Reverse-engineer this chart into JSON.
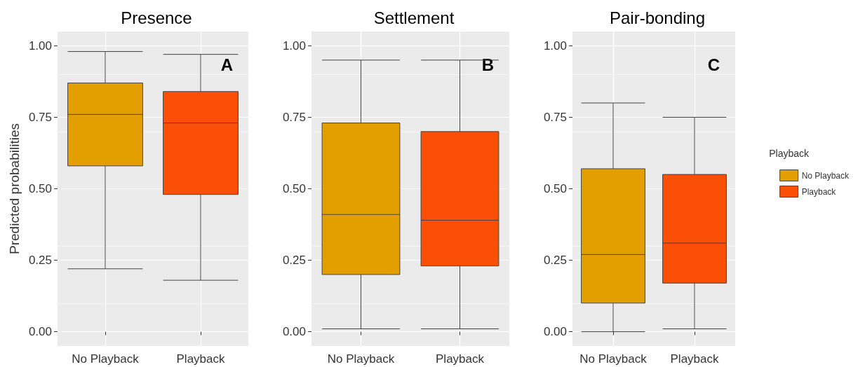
{
  "chart_data": [
    {
      "type": "box",
      "title": "Presence",
      "ylabel": "Predicted probabilities",
      "categories": [
        "No Playback",
        "Playback"
      ],
      "annotations": [
        "A"
      ],
      "ylim": [
        -0.05,
        1.05
      ],
      "yticks": [
        {
          "value": 0,
          "label": "0.00"
        },
        {
          "value": 0.25,
          "label": "0.25"
        },
        {
          "value": 0.5,
          "label": "0.50"
        },
        {
          "value": 0.75,
          "label": "0.75"
        },
        {
          "value": 1,
          "label": "1.00"
        }
      ],
      "grid": true,
      "legend": false,
      "colors": [
        "#e39f00",
        "#fb4e07"
      ],
      "boxes": [
        {
          "low": 0.22,
          "q1": 0.58,
          "median": 0.76,
          "q3": 0.87,
          "high": 0.98
        },
        {
          "low": 0.18,
          "q1": 0.48,
          "median": 0.73,
          "q3": 0.84,
          "high": 0.97
        }
      ]
    },
    {
      "type": "box",
      "title": "Settlement",
      "categories": [
        "No Playback",
        "Playback"
      ],
      "annotations": [
        "B"
      ],
      "ylim": [
        -0.05,
        1.05
      ],
      "yticks": [
        {
          "value": 0,
          "label": "0.00"
        },
        {
          "value": 0.25,
          "label": "0.25"
        },
        {
          "value": 0.5,
          "label": "0.50"
        },
        {
          "value": 0.75,
          "label": "0.75"
        },
        {
          "value": 1,
          "label": "1.00"
        }
      ],
      "grid": true,
      "legend": false,
      "colors": [
        "#e39f00",
        "#fb4e07"
      ],
      "boxes": [
        {
          "low": 0.01,
          "q1": 0.2,
          "median": 0.41,
          "q3": 0.73,
          "high": 0.95
        },
        {
          "low": 0.01,
          "q1": 0.23,
          "median": 0.39,
          "q3": 0.7,
          "high": 0.95
        }
      ]
    },
    {
      "type": "box",
      "title": "Pair-bonding",
      "legend_title": "Playback",
      "categories": [
        "No Playback",
        "Playback"
      ],
      "annotations": [
        "C"
      ],
      "ylim": [
        -0.05,
        1.05
      ],
      "yticks": [
        {
          "value": 0,
          "label": "0.00"
        },
        {
          "value": 0.25,
          "label": "0.25"
        },
        {
          "value": 0.5,
          "label": "0.50"
        },
        {
          "value": 0.75,
          "label": "0.75"
        },
        {
          "value": 1,
          "label": "1.00"
        }
      ],
      "grid": true,
      "legend": "right",
      "series": [
        {
          "name": "No Playback",
          "color": "#e39f00",
          "boxes": [
            {
              "low": 0,
              "q1": 0.1,
              "median": 0.27,
              "q3": 0.57,
              "high": 0.8
            },
            null
          ]
        },
        {
          "name": "Playback",
          "color": "#fb4e07",
          "boxes": [
            null,
            {
              "low": 0.01,
              "q1": 0.17,
              "median": 0.31,
              "q3": 0.55,
              "high": 0.75
            }
          ]
        }
      ]
    }
  ]
}
